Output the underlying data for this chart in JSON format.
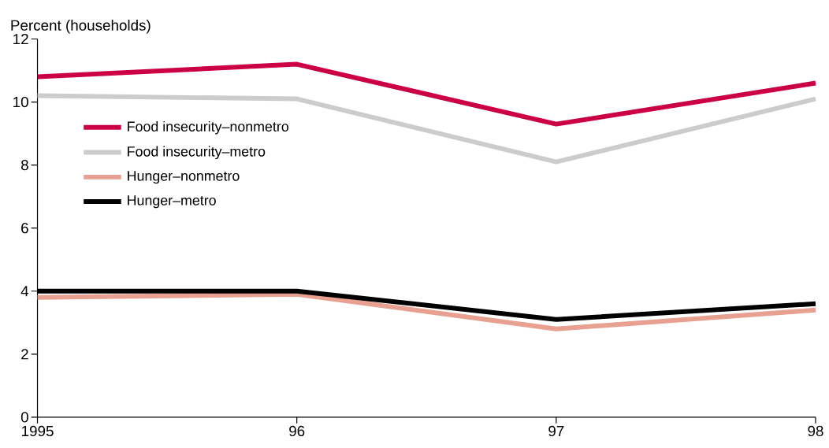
{
  "chart_data": {
    "type": "line",
    "ylabel": "Percent (households)",
    "x": [
      1995,
      1996,
      1997,
      1998
    ],
    "xlim": [
      1995,
      1998
    ],
    "xticks": [
      1995,
      {
        "value": 1996,
        "label": "96"
      },
      {
        "value": 1997,
        "label": "97"
      },
      {
        "value": 1998,
        "label": "98"
      }
    ],
    "ylim": [
      0,
      12
    ],
    "yticks": [
      0,
      2,
      4,
      6,
      8,
      10,
      12
    ],
    "legend": "top left",
    "line_style": "solid",
    "series": [
      {
        "name": "Food insecurity–nonmetro",
        "color": "#cc0044",
        "values": [
          10.8,
          11.2,
          9.3,
          10.6
        ]
      },
      {
        "name": "Food insecurity–metro",
        "color": "#cccccc",
        "values": [
          10.2,
          10.1,
          8.1,
          10.1
        ]
      },
      {
        "name": "Hunger–nonmetro",
        "color": "#e8a090",
        "values": [
          3.8,
          3.9,
          2.8,
          3.4
        ]
      },
      {
        "name": "Hunger–metro",
        "color": "#000000",
        "values": [
          4.0,
          4.0,
          3.1,
          3.6
        ]
      }
    ]
  }
}
